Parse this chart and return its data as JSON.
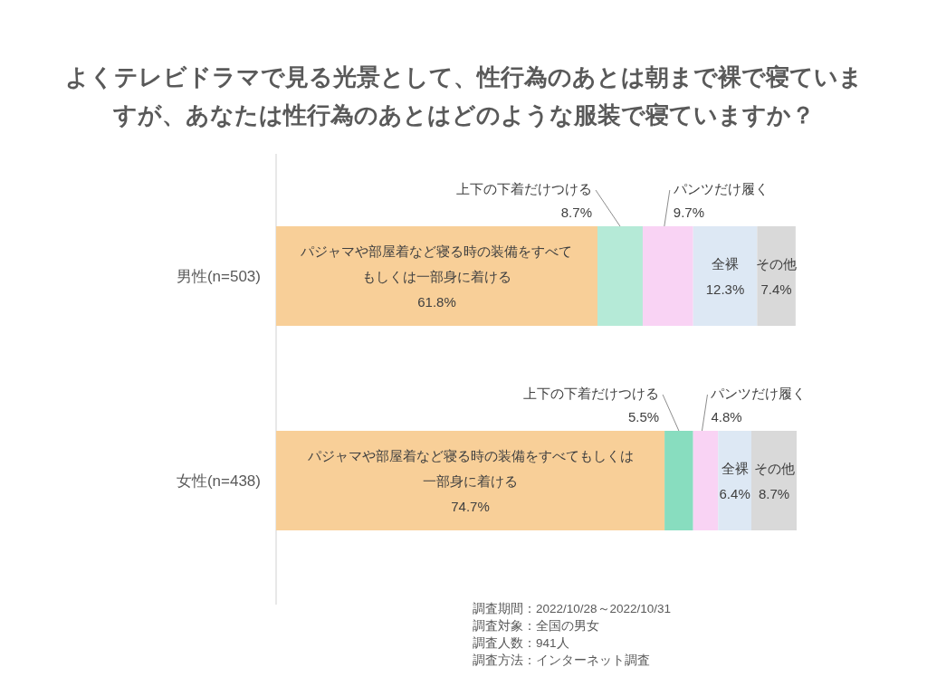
{
  "chart_data": {
    "type": "bar",
    "orientation": "horizontal",
    "stacked": true,
    "title": "よくテレビドラマで見る光景として、性行為のあとは朝まで裸で寝ていますが、あなたは性行為のあとはどのような服装で寝ていますか？",
    "categories": [
      "男性(n=503)",
      "女性(n=438)"
    ],
    "series": [
      {
        "name": "パジャマや部屋着など寝る時の装備をすべてもしくは一部身に着ける",
        "color": "#f8cf98",
        "values": [
          61.8,
          74.7
        ],
        "value_labels": [
          "61.8%",
          "74.7%"
        ]
      },
      {
        "name": "上下の下着だけつける",
        "colors": [
          "#b5ead7",
          "#88ddbf"
        ],
        "values": [
          8.7,
          5.5
        ],
        "value_labels": [
          "8.7%",
          "5.5%"
        ]
      },
      {
        "name": "パンツだけ履く",
        "color": "#f9d3f4",
        "values": [
          9.7,
          4.8
        ],
        "value_labels": [
          "9.7%",
          "4.8%"
        ]
      },
      {
        "name": "全裸",
        "color": "#dde8f4",
        "values": [
          12.3,
          6.4
        ],
        "value_labels": [
          "12.3%",
          "6.4%"
        ]
      },
      {
        "name": "その他",
        "color": "#d9d9d9",
        "values": [
          7.4,
          8.7
        ],
        "value_labels": [
          "7.4%",
          "8.7%"
        ]
      }
    ],
    "annotations": [
      "調査期間：2022/10/28～2022/10/31",
      "調査対象：全国の男女",
      "調査人数：941人",
      "調査方法：インターネット調査"
    ]
  }
}
